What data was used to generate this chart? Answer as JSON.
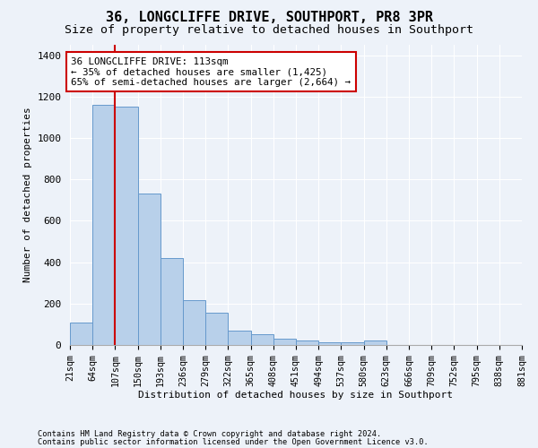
{
  "title": "36, LONGCLIFFE DRIVE, SOUTHPORT, PR8 3PR",
  "subtitle": "Size of property relative to detached houses in Southport",
  "xlabel": "Distribution of detached houses by size in Southport",
  "ylabel": "Number of detached properties",
  "footnote1": "Contains HM Land Registry data © Crown copyright and database right 2024.",
  "footnote2": "Contains public sector information licensed under the Open Government Licence v3.0.",
  "categories": [
    "21sqm",
    "64sqm",
    "107sqm",
    "150sqm",
    "193sqm",
    "236sqm",
    "279sqm",
    "322sqm",
    "365sqm",
    "408sqm",
    "451sqm",
    "494sqm",
    "537sqm",
    "580sqm",
    "623sqm",
    "666sqm",
    "709sqm",
    "752sqm",
    "795sqm",
    "838sqm",
    "881sqm"
  ],
  "bar_heights": [
    110,
    1160,
    1150,
    730,
    420,
    215,
    155,
    70,
    50,
    30,
    20,
    15,
    15,
    20,
    0,
    0,
    0,
    0,
    0,
    0
  ],
  "bar_color": "#b8d0ea",
  "bar_edge_color": "#6699cc",
  "property_line_x": 107,
  "property_line_color": "#cc0000",
  "annotation_text": "36 LONGCLIFFE DRIVE: 113sqm\n← 35% of detached houses are smaller (1,425)\n65% of semi-detached houses are larger (2,664) →",
  "annotation_box_color": "#cc0000",
  "ylim": [
    0,
    1450
  ],
  "background_color": "#edf2f9",
  "plot_background": "#edf2f9",
  "grid_color": "#ffffff",
  "title_fontsize": 11,
  "subtitle_fontsize": 9.5,
  "yticks": [
    0,
    200,
    400,
    600,
    800,
    1000,
    1200,
    1400
  ]
}
